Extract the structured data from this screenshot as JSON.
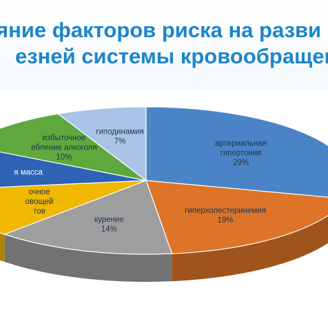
{
  "title_lines": [
    "яние факторов риска на разви",
    "езней системы кровообращен"
  ],
  "chart_data": {
    "type": "pie",
    "slices": [
      {
        "lines": [
          "артериальная",
          "гипертония"
        ],
        "percent_label": "29%",
        "value": 29,
        "color": "#4a84c6"
      },
      {
        "lines": [
          "гиперхолестеринемия"
        ],
        "percent_label": "19%",
        "value": 19,
        "color": "#dd7427"
      },
      {
        "lines": [
          "курение"
        ],
        "percent_label": "14%",
        "value": 14,
        "color": "#9e9e9e"
      },
      {
        "lines": [
          "очное",
          "овощей",
          "тов"
        ],
        "percent_label": "",
        "value": 11,
        "color": "#f0b800"
      },
      {
        "lines": [
          "я масса"
        ],
        "percent_label": "",
        "value": 10,
        "color": "#2d62b5"
      },
      {
        "lines": [
          "избыточное",
          "ебление алкоголя"
        ],
        "percent_label": "10%",
        "value": 10,
        "color": "#5ea83d"
      },
      {
        "lines": [
          "гиподинамия"
        ],
        "percent_label": "7%",
        "value": 7,
        "color": "#a9c4e6"
      }
    ]
  }
}
